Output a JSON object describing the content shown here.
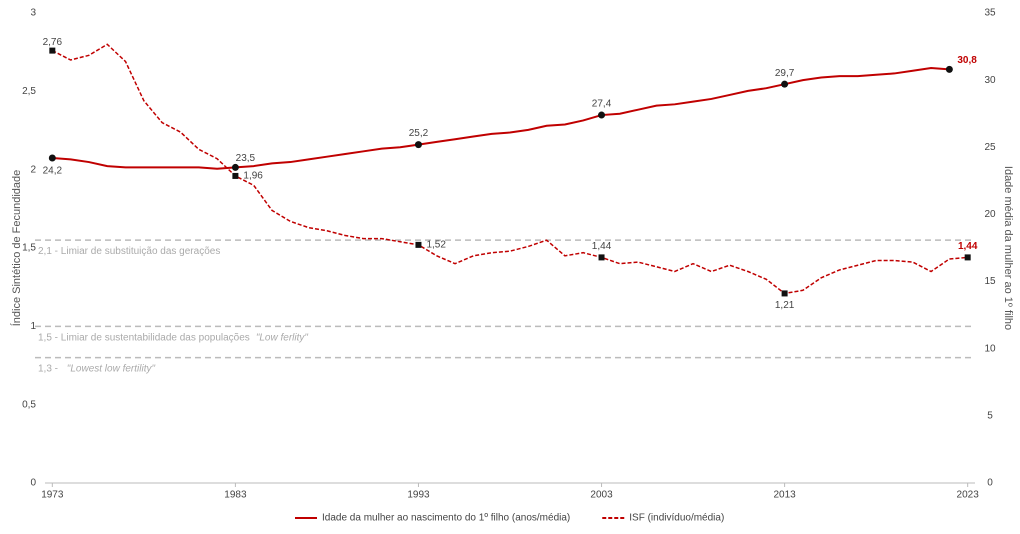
{
  "chart_data": {
    "type": "line",
    "x": [
      1973,
      1974,
      1975,
      1976,
      1977,
      1978,
      1979,
      1980,
      1981,
      1982,
      1983,
      1984,
      1985,
      1986,
      1987,
      1988,
      1989,
      1990,
      1991,
      1992,
      1993,
      1994,
      1995,
      1996,
      1997,
      1998,
      1999,
      2000,
      2001,
      2002,
      2003,
      2004,
      2005,
      2006,
      2007,
      2008,
      2009,
      2010,
      2011,
      2012,
      2013,
      2014,
      2015,
      2016,
      2017,
      2018,
      2019,
      2020,
      2021,
      2022,
      2023
    ],
    "xlim": [
      1972.6,
      2023.4
    ],
    "xticks": [
      1973,
      1983,
      1993,
      2003,
      2013,
      2023
    ],
    "ylim": [
      0,
      3
    ],
    "yticks": [
      0,
      {
        "value": 0.5,
        "label": "0,5"
      },
      1,
      {
        "value": 1.5,
        "label": "1,5"
      },
      2,
      {
        "value": 2.5,
        "label": "2,5"
      },
      3
    ],
    "y2lim": [
      0,
      35
    ],
    "y2ticks": [
      0,
      5,
      10,
      15,
      20,
      25,
      30,
      35
    ],
    "ylabel": "Índice Sintético de Fecundidade",
    "y2label": "Idade média da mulher ao 1º filho",
    "series": [
      {
        "name": "Idade da mulher ao nascimento do 1º filho (anos/média)",
        "color": "#c00000",
        "axis": "y2",
        "dashed": false,
        "values": [
          24.2,
          24.1,
          23.9,
          23.6,
          23.5,
          23.5,
          23.5,
          23.5,
          23.5,
          23.4,
          23.5,
          23.6,
          23.8,
          23.9,
          24.1,
          24.3,
          24.5,
          24.7,
          24.9,
          25.0,
          25.2,
          25.4,
          25.6,
          25.8,
          26.0,
          26.1,
          26.3,
          26.6,
          26.7,
          27.0,
          27.4,
          27.5,
          27.8,
          28.1,
          28.2,
          28.4,
          28.6,
          28.9,
          29.2,
          29.4,
          29.7,
          30.0,
          30.2,
          30.3,
          30.3,
          30.4,
          30.5,
          30.7,
          30.9,
          30.8,
          null
        ],
        "value_labels": [
          "24,2",
          null,
          null,
          null,
          null,
          null,
          null,
          null,
          null,
          null,
          "23,5",
          null,
          null,
          null,
          null,
          null,
          null,
          null,
          null,
          null,
          "25,2",
          null,
          null,
          null,
          null,
          null,
          null,
          null,
          null,
          null,
          "27,4",
          null,
          null,
          null,
          null,
          null,
          null,
          null,
          null,
          null,
          "29,7",
          null,
          null,
          null,
          null,
          null,
          null,
          null,
          null,
          "30,8",
          null
        ]
      },
      {
        "name": "ISF (indivíduo/média)",
        "color": "#c00000",
        "axis": "y",
        "dashed": true,
        "values": [
          2.76,
          2.7,
          2.73,
          2.8,
          2.69,
          2.44,
          2.3,
          2.24,
          2.13,
          2.07,
          1.96,
          1.9,
          1.74,
          1.67,
          1.63,
          1.61,
          1.58,
          1.56,
          1.56,
          1.54,
          1.52,
          1.45,
          1.4,
          1.45,
          1.47,
          1.48,
          1.51,
          1.55,
          1.45,
          1.47,
          1.44,
          1.4,
          1.41,
          1.38,
          1.35,
          1.4,
          1.35,
          1.39,
          1.35,
          1.3,
          1.21,
          1.23,
          1.31,
          1.36,
          1.39,
          1.42,
          1.42,
          1.41,
          1.35,
          1.43,
          1.44
        ],
        "value_labels": [
          "2,76",
          null,
          null,
          null,
          null,
          null,
          null,
          null,
          null,
          null,
          "1,96",
          null,
          null,
          null,
          null,
          null,
          null,
          null,
          null,
          null,
          "1,52",
          null,
          null,
          null,
          null,
          null,
          null,
          null,
          null,
          null,
          "1,44",
          null,
          null,
          null,
          null,
          null,
          null,
          null,
          null,
          null,
          "1,21",
          null,
          null,
          null,
          null,
          null,
          null,
          null,
          null,
          null,
          "1,44"
        ]
      }
    ],
    "annotations": [
      {
        "y": 1.55,
        "text": "2,1 - Limiar de substituição das gerações"
      },
      {
        "y": 1.0,
        "text": "1,5 - Limiar de sustentabilidade das populações",
        "emphasis": "\"Low ferlity\""
      },
      {
        "y": 0.8,
        "text": "1,3 - ",
        "emphasis": "\"Lowest low fertility\""
      }
    ]
  }
}
